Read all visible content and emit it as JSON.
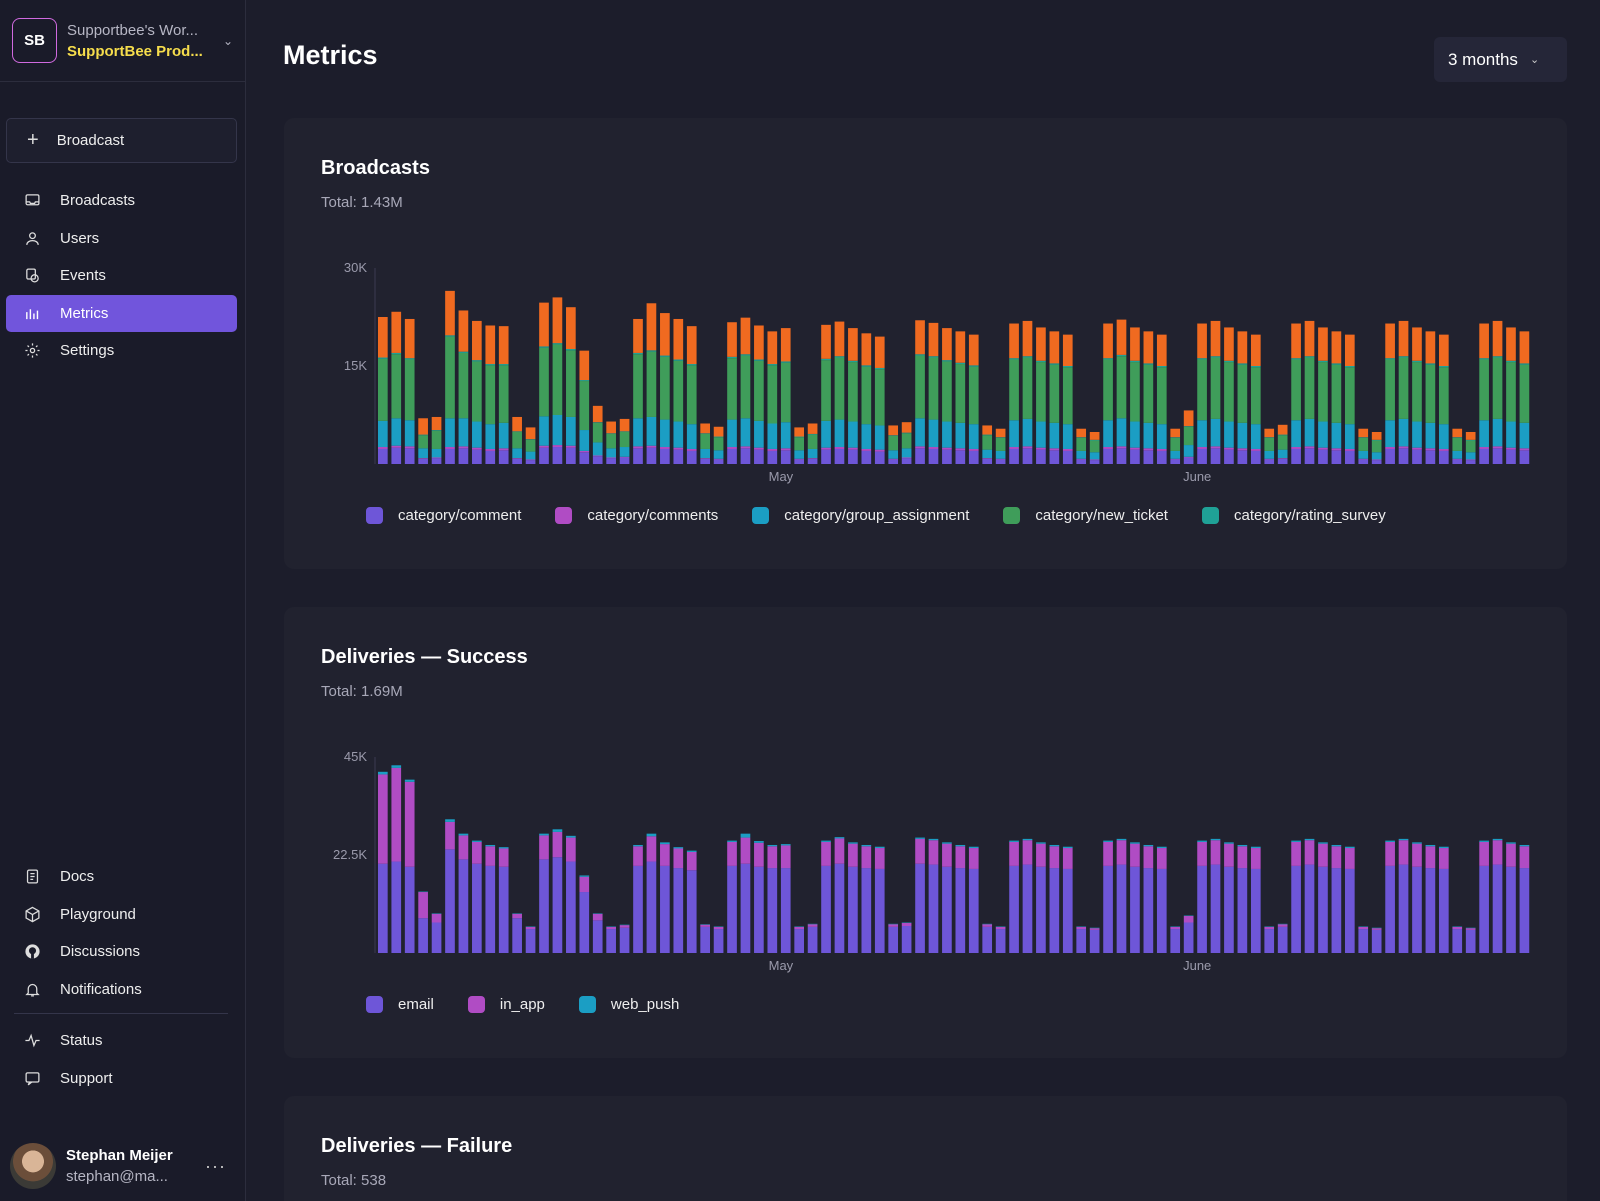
{
  "workspace": {
    "badge": "SB",
    "name": "Supportbee's Wor...",
    "project": "SupportBee Prod..."
  },
  "new_broadcast_label": "Broadcast",
  "nav": {
    "broadcasts": "Broadcasts",
    "users": "Users",
    "events": "Events",
    "metrics": "Metrics",
    "settings": "Settings",
    "docs": "Docs",
    "playground": "Playground",
    "discussions": "Discussions",
    "notifications": "Notifications",
    "status": "Status",
    "support": "Support"
  },
  "user": {
    "name": "Stephan Meijer",
    "email": "stephan@ma..."
  },
  "page": {
    "title": "Metrics",
    "range": "3 months"
  },
  "colors": {
    "comment": "#6e56d8",
    "comments": "#b04cc4",
    "group_assignment": "#1b9ec4",
    "new_ticket": "#3f9d5a",
    "rating_survey": "#1fa196",
    "orange": "#f06a20",
    "email": "#6e56d8",
    "in_app": "#b04cc4",
    "web_push": "#1b9ec4"
  },
  "cards": {
    "broadcasts": {
      "title": "Broadcasts",
      "total": "Total: 1.43M"
    },
    "success": {
      "title": "Deliveries — Success",
      "total": "Total: 1.69M"
    },
    "failure": {
      "title": "Deliveries — Failure",
      "total": "Total: 538"
    }
  },
  "chart_data": [
    {
      "type": "bar",
      "stacked": true,
      "title": "Broadcasts",
      "x_tick_labels": [
        "May",
        "June"
      ],
      "y_ticks": [
        "15K",
        "30K"
      ],
      "ylim": [
        0,
        30000
      ],
      "days": 86,
      "series": [
        {
          "name": "category/comment",
          "color": "#6e56d8",
          "values": [
            2300,
            2500,
            2400,
            800,
            900,
            2300,
            2400,
            2200,
            2000,
            2100,
            800,
            600,
            2500,
            2600,
            2500,
            1800,
            1200,
            900,
            1000,
            2400,
            2500,
            2300,
            2200,
            2000,
            800,
            700,
            2300,
            2400,
            2200,
            2000,
            2100,
            700,
            800,
            2200,
            2300,
            2200,
            2000,
            1900,
            700,
            900,
            2400,
            2300,
            2200,
            2100,
            2000,
            800,
            700,
            2300,
            2400,
            2200,
            2100,
            2000,
            700,
            600,
            2300,
            2400,
            2200,
            2100,
            2000,
            700,
            1000,
            2300,
            2400,
            2200,
            2100,
            2000,
            700,
            800,
            2300,
            2400,
            2200,
            2100,
            2000,
            700,
            600,
            2300,
            2400,
            2200,
            2100,
            2000,
            700,
            600,
            2300,
            2400,
            2200,
            2100,
            2000,
            500
          ]
        },
        {
          "name": "category/comments",
          "color": "#b04cc4",
          "values": [
            300,
            300,
            300,
            100,
            100,
            300,
            300,
            300,
            300,
            300,
            100,
            100,
            300,
            300,
            300,
            200,
            100,
            100,
            100,
            300,
            300,
            300,
            300,
            300,
            100,
            100,
            300,
            300,
            300,
            300,
            300,
            100,
            100,
            300,
            300,
            300,
            300,
            300,
            100,
            100,
            300,
            300,
            300,
            300,
            300,
            100,
            100,
            300,
            300,
            300,
            300,
            300,
            100,
            100,
            300,
            300,
            300,
            300,
            300,
            100,
            100,
            300,
            300,
            300,
            300,
            300,
            100,
            100,
            300,
            300,
            300,
            300,
            300,
            100,
            100,
            300,
            300,
            300,
            300,
            300,
            100,
            100,
            300,
            300,
            300,
            300,
            300,
            100
          ]
        },
        {
          "name": "category/group_assignment",
          "color": "#1b9ec4",
          "values": [
            4000,
            4200,
            4000,
            1500,
            1300,
            4400,
            4300,
            4000,
            3800,
            3900,
            1500,
            1200,
            4500,
            4600,
            4400,
            3200,
            2000,
            1400,
            1500,
            4300,
            4400,
            4200,
            4000,
            3800,
            1400,
            1300,
            4200,
            4300,
            4100,
            3900,
            4000,
            1300,
            1400,
            4100,
            4200,
            4000,
            3800,
            3700,
            1300,
            1400,
            4300,
            4200,
            4000,
            3900,
            3800,
            1300,
            1200,
            4100,
            4200,
            4000,
            3900,
            3800,
            1200,
            1100,
            4100,
            4300,
            4000,
            3900,
            3800,
            1200,
            1800,
            4100,
            4200,
            4000,
            3900,
            3800,
            1200,
            1300,
            4100,
            4200,
            4000,
            3900,
            3800,
            1200,
            1100,
            4100,
            4200,
            4000,
            3900,
            3800,
            1200,
            1100,
            4100,
            4200,
            4000,
            3900,
            3800,
            400
          ]
        },
        {
          "name": "category/new_ticket",
          "color": "#3f9d5a",
          "values": [
            9500,
            9800,
            9300,
            2000,
            2800,
            12500,
            10000,
            9200,
            9000,
            8800,
            2500,
            1800,
            10500,
            10800,
            10200,
            7500,
            3000,
            2200,
            2300,
            9800,
            10000,
            9600,
            9300,
            9000,
            2300,
            2000,
            9400,
            9600,
            9200,
            8900,
            9100,
            2000,
            2200,
            9300,
            9500,
            9100,
            8800,
            8600,
            2200,
            2300,
            9600,
            9500,
            9200,
            9000,
            8800,
            2200,
            2000,
            9300,
            9400,
            9100,
            8900,
            8700,
            2000,
            1800,
            9300,
            9500,
            9100,
            8900,
            8700,
            2000,
            2800,
            9300,
            9400,
            9100,
            8900,
            8700,
            2000,
            2200,
            9300,
            9400,
            9100,
            8900,
            8700,
            2000,
            1800,
            9300,
            9400,
            9100,
            8900,
            8700,
            2000,
            1800,
            9300,
            9400,
            9100,
            8900,
            8700,
            400
          ]
        },
        {
          "name": "category/rating_survey",
          "color": "#1fa196",
          "values": [
            200,
            200,
            200,
            100,
            100,
            200,
            200,
            200,
            200,
            200,
            100,
            100,
            200,
            200,
            200,
            150,
            100,
            100,
            100,
            200,
            200,
            200,
            200,
            200,
            100,
            100,
            200,
            200,
            200,
            200,
            200,
            100,
            100,
            200,
            200,
            200,
            200,
            200,
            100,
            100,
            200,
            200,
            200,
            200,
            200,
            100,
            100,
            200,
            200,
            200,
            200,
            200,
            100,
            100,
            200,
            200,
            200,
            200,
            200,
            100,
            100,
            200,
            200,
            200,
            200,
            200,
            100,
            100,
            200,
            200,
            200,
            200,
            200,
            100,
            100,
            200,
            200,
            200,
            200,
            200,
            100,
            100,
            200,
            200,
            200,
            200,
            200,
            100
          ]
        },
        {
          "color": "#f06a20",
          "values": [
            6200,
            6300,
            6000,
            2500,
            2000,
            6800,
            6300,
            6000,
            5900,
            5800,
            2200,
            1800,
            6700,
            7000,
            6400,
            4500,
            2500,
            1800,
            1900,
            5200,
            7200,
            6500,
            6200,
            5800,
            1500,
            1500,
            5300,
            5600,
            5200,
            5000,
            5100,
            1400,
            1600,
            5200,
            5300,
            5000,
            4900,
            4800,
            1500,
            1600,
            5200,
            5100,
            4900,
            4800,
            4700,
            1400,
            1300,
            5300,
            5400,
            5100,
            4900,
            4800,
            1300,
            1200,
            5300,
            5400,
            5100,
            4900,
            4800,
            1300,
            2400,
            5300,
            5400,
            5100,
            4900,
            4800,
            1300,
            1500,
            5300,
            5400,
            5100,
            4900,
            4800,
            1300,
            1200,
            5300,
            5400,
            5100,
            4900,
            4800,
            1300,
            1200,
            5300,
            5400,
            5100,
            4900,
            4800,
            300
          ]
        }
      ],
      "legend": [
        "category/comment",
        "category/comments",
        "category/group_assignment",
        "category/new_ticket",
        "category/rating_survey"
      ]
    },
    {
      "type": "bar",
      "stacked": true,
      "title": "Deliveries — Success",
      "x_tick_labels": [
        "May",
        "June"
      ],
      "y_ticks": [
        "22.5K",
        "45K"
      ],
      "ylim": [
        0,
        45000
      ],
      "days": 86,
      "series": [
        {
          "name": "email",
          "color": "#6e56d8",
          "values": [
            20500,
            21000,
            19800,
            8000,
            7000,
            23800,
            21500,
            20500,
            20000,
            19800,
            8000,
            5500,
            21500,
            22000,
            21000,
            14000,
            7500,
            5500,
            5800,
            20000,
            21000,
            20000,
            19500,
            19000,
            6000,
            5500,
            20000,
            20500,
            19800,
            19500,
            19500,
            5500,
            6000,
            20000,
            20500,
            19800,
            19500,
            19300,
            6000,
            6200,
            20500,
            20300,
            19800,
            19500,
            19300,
            6000,
            5500,
            20000,
            20300,
            19800,
            19500,
            19300,
            5500,
            5300,
            20000,
            20300,
            19800,
            19500,
            19300,
            5500,
            7000,
            20000,
            20300,
            19800,
            19500,
            19300,
            5500,
            6000,
            20000,
            20300,
            19800,
            19500,
            19300,
            5500,
            5300,
            20000,
            20300,
            19800,
            19500,
            19300,
            5500,
            5300,
            20000,
            20300,
            19800,
            19500,
            19300,
            2000
          ]
        },
        {
          "name": "in_app",
          "color": "#b04cc4",
          "values": [
            20500,
            21500,
            19500,
            6000,
            2000,
            6300,
            5500,
            5000,
            4500,
            4200,
            1000,
            500,
            5500,
            5800,
            5500,
            3500,
            1500,
            500,
            600,
            4500,
            5800,
            5000,
            4500,
            4200,
            500,
            500,
            5500,
            6000,
            5500,
            5000,
            5200,
            500,
            600,
            5500,
            5800,
            5300,
            5000,
            4800,
            600,
            700,
            5700,
            5600,
            5300,
            5000,
            4800,
            600,
            500,
            5500,
            5600,
            5300,
            5000,
            4800,
            500,
            400,
            5500,
            5600,
            5300,
            5000,
            4800,
            500,
            1500,
            5500,
            5600,
            5300,
            5000,
            4800,
            500,
            600,
            5500,
            5600,
            5300,
            5000,
            4800,
            500,
            400,
            5500,
            5600,
            5300,
            5000,
            4800,
            500,
            400,
            5500,
            5600,
            5300,
            5000,
            4800,
            100
          ]
        },
        {
          "name": "web_push",
          "color": "#1b9ec4",
          "values": [
            600,
            600,
            500,
            100,
            100,
            600,
            400,
            300,
            300,
            300,
            100,
            100,
            400,
            600,
            400,
            300,
            100,
            100,
            100,
            300,
            600,
            400,
            300,
            300,
            100,
            100,
            300,
            900,
            400,
            300,
            300,
            100,
            100,
            300,
            300,
            300,
            300,
            300,
            100,
            100,
            300,
            300,
            300,
            300,
            300,
            100,
            100,
            300,
            300,
            300,
            300,
            300,
            100,
            100,
            300,
            300,
            300,
            300,
            300,
            100,
            100,
            300,
            300,
            300,
            300,
            300,
            100,
            100,
            300,
            300,
            300,
            300,
            300,
            100,
            100,
            300,
            300,
            300,
            300,
            300,
            100,
            100,
            300,
            300,
            300,
            300,
            300,
            100
          ]
        }
      ],
      "legend": [
        "email",
        "in_app",
        "web_push"
      ]
    },
    {
      "type": "bar",
      "title": "Deliveries — Failure"
    }
  ]
}
